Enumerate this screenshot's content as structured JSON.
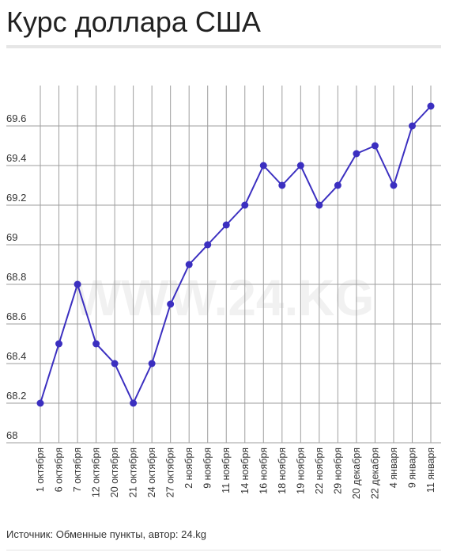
{
  "chart_data": {
    "type": "line",
    "title": "Курс доллара США",
    "categories": [
      "1 октября",
      "6 октября",
      "7 октября",
      "12 октября",
      "20 октября",
      "21 октября",
      "24 октября",
      "27 октября",
      "2 ноября",
      "9 ноября",
      "11 ноября",
      "14 ноября",
      "16 ноября",
      "18 ноября",
      "19 ноября",
      "22 ноября",
      "29 ноября",
      "20 декабря",
      "22 декабря",
      "4 января",
      "9 января",
      "11 января"
    ],
    "values": [
      68.2,
      68.5,
      68.8,
      68.5,
      68.4,
      68.2,
      68.4,
      68.7,
      68.9,
      69.0,
      69.1,
      69.2,
      69.4,
      69.3,
      69.4,
      69.2,
      69.3,
      69.46,
      69.5,
      69.3,
      69.6,
      69.7
    ],
    "y_ticks": [
      "68",
      "68.2",
      "68.4",
      "68.6",
      "68.8",
      "69",
      "69.2",
      "69.4",
      "69.6"
    ],
    "ylim": [
      68,
      69.8
    ],
    "grid": true,
    "legend": "none",
    "line_color": "#3b2fc0",
    "marker_color": "#3b2fc0",
    "grid_color": "#9e9e9e",
    "watermark_color": "#f1f1f1"
  },
  "watermark": "WWW.24.KG",
  "footer": {
    "source": "Источник: Обменные пункты, автор: 24.kg"
  }
}
